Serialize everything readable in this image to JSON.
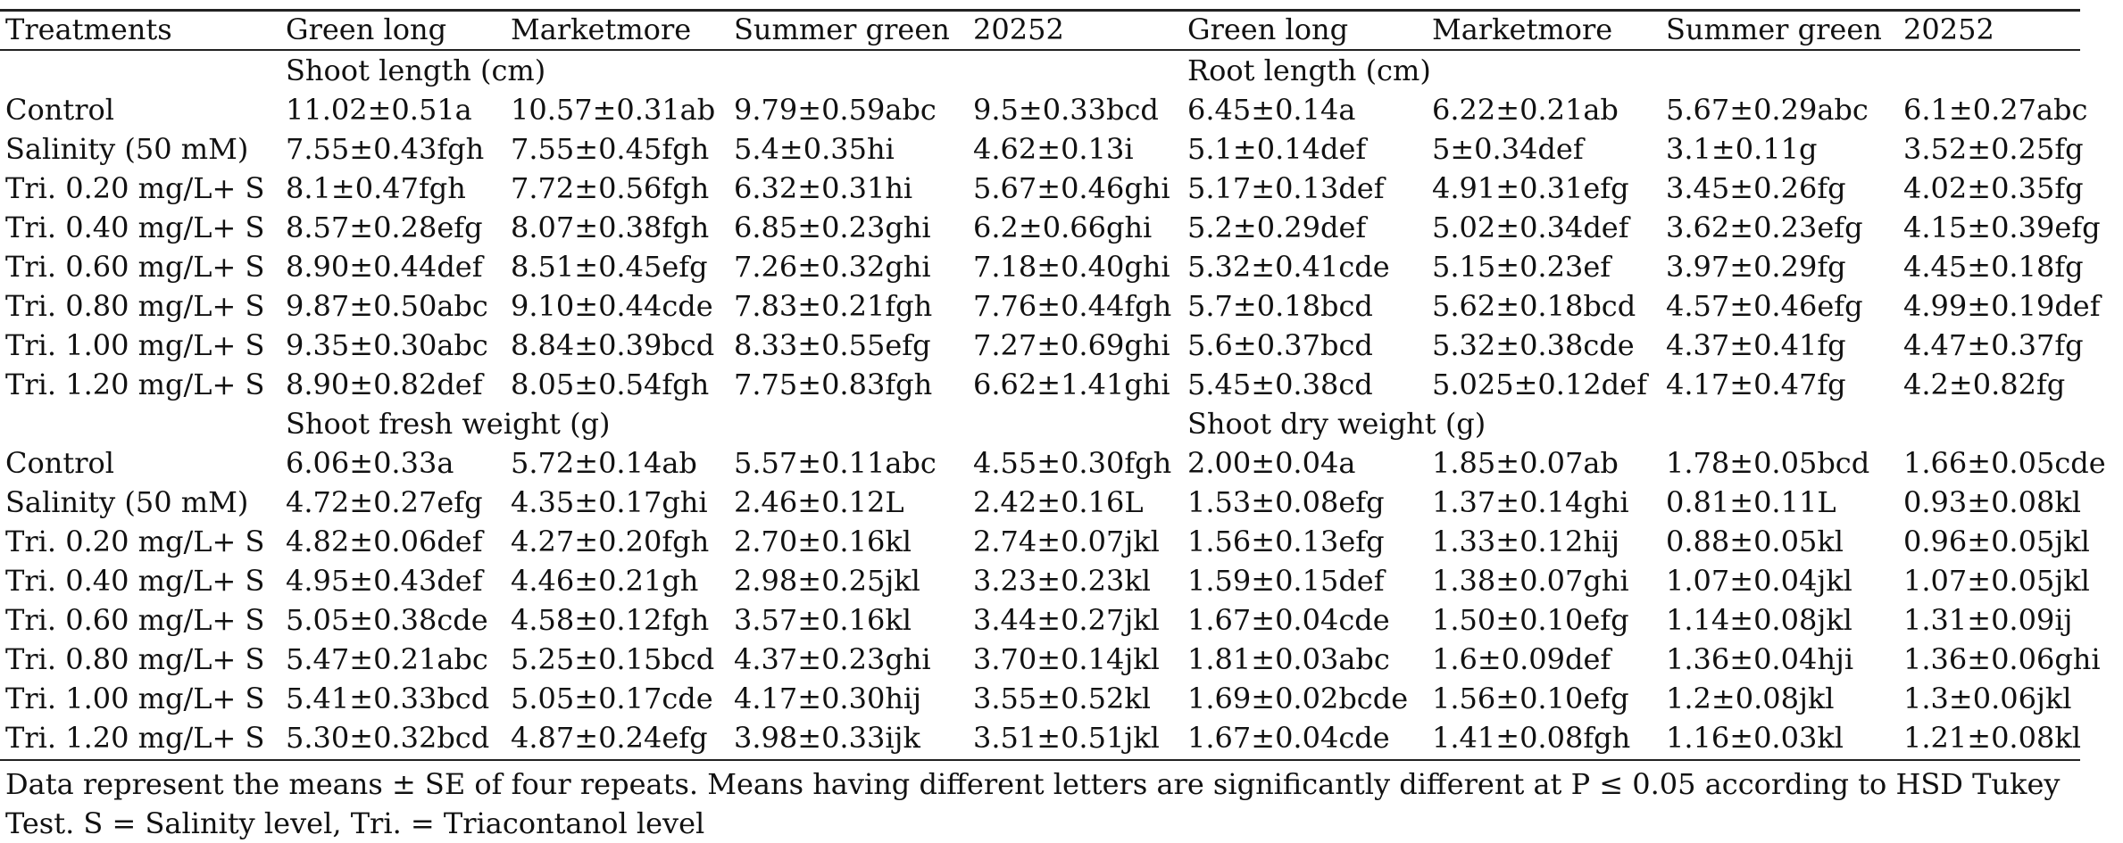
{
  "headers": [
    "Treatments",
    "Green long",
    "Marketmore",
    "Summer green",
    "20252",
    "Green long",
    "Marketmore",
    "Summer green",
    "20252"
  ],
  "sections": [
    {
      "left_title": "Shoot length (cm)",
      "right_title": "Root length (cm)",
      "rows": [
        [
          "Control",
          "11.02±0.51a",
          "10.57±0.31ab",
          "9.79±0.59abc",
          "9.5±0.33bcd",
          "6.45±0.14a",
          "6.22±0.21ab",
          "5.67±0.29abc",
          "6.1±0.27abc"
        ],
        [
          "Salinity (50 mM)",
          "7.55±0.43fgh",
          "7.55±0.45fgh",
          "5.4±0.35hi",
          "4.62±0.13i",
          "5.1±0.14def",
          "5±0.34def",
          "3.1±0.11g",
          "3.52±0.25fg"
        ],
        [
          "Tri. 0.20 mg/L+ S",
          "8.1±0.47fgh",
          "7.72±0.56fgh",
          "6.32±0.31hi",
          "5.67±0.46ghi",
          "5.17±0.13def",
          "4.91±0.31efg",
          "3.45±0.26fg",
          "4.02±0.35fg"
        ],
        [
          "Tri. 0.40 mg/L+ S",
          "8.57±0.28efg",
          "8.07±0.38fgh",
          "6.85±0.23ghi",
          "6.2±0.66ghi",
          "5.2±0.29def",
          "5.02±0.34def",
          "3.62±0.23efg",
          "4.15±0.39efg"
        ],
        [
          "Tri. 0.60 mg/L+ S",
          "8.90±0.44def",
          "8.51±0.45efg",
          "7.26±0.32ghi",
          "7.18±0.40ghi",
          "5.32±0.41cde",
          "5.15±0.23ef",
          "3.97±0.29fg",
          "4.45±0.18fg"
        ],
        [
          "Tri. 0.80 mg/L+ S",
          "9.87±0.50abc",
          "9.10±0.44cde",
          "7.83±0.21fgh",
          "7.76±0.44fgh",
          "5.7±0.18bcd",
          "5.62±0.18bcd",
          "4.57±0.46efg",
          "4.99±0.19def"
        ],
        [
          "Tri. 1.00 mg/L+ S",
          "9.35±0.30abc",
          "8.84±0.39bcd",
          "8.33±0.55efg",
          "7.27±0.69ghi",
          "5.6±0.37bcd",
          "5.32±0.38cde",
          "4.37±0.41fg",
          "4.47±0.37fg"
        ],
        [
          "Tri. 1.20 mg/L+ S",
          "8.90±0.82def",
          "8.05±0.54fgh",
          "7.75±0.83fgh",
          "6.62±1.41ghi",
          "5.45±0.38cd",
          "5.025±0.12def",
          "4.17±0.47fg",
          "4.2±0.82fg"
        ]
      ]
    },
    {
      "left_title": "Shoot fresh weight (g)",
      "right_title": "Shoot dry weight (g)",
      "rows": [
        [
          "Control",
          "6.06±0.33a",
          "5.72±0.14ab",
          "5.57±0.11abc",
          "4.55±0.30fgh",
          "2.00±0.04a",
          "1.85±0.07ab",
          "1.78±0.05bcd",
          "1.66±0.05cde"
        ],
        [
          "Salinity (50 mM)",
          "4.72±0.27efg",
          "4.35±0.17ghi",
          "2.46±0.12L",
          "2.42±0.16L",
          "1.53±0.08efg",
          "1.37±0.14ghi",
          "0.81±0.11L",
          "0.93±0.08kl"
        ],
        [
          "Tri. 0.20 mg/L+ S",
          "4.82±0.06def",
          "4.27±0.20fgh",
          "2.70±0.16kl",
          "2.74±0.07jkl",
          "1.56±0.13efg",
          "1.33±0.12hij",
          "0.88±0.05kl",
          "0.96±0.05jkl"
        ],
        [
          "Tri. 0.40 mg/L+ S",
          "4.95±0.43def",
          "4.46±0.21gh",
          "2.98±0.25jkl",
          "3.23±0.23kl",
          "1.59±0.15def",
          "1.38±0.07ghi",
          "1.07±0.04jkl",
          "1.07±0.05jkl"
        ],
        [
          "Tri. 0.60 mg/L+ S",
          "5.05±0.38cde",
          "4.58±0.12fgh",
          "3.57±0.16kl",
          "3.44±0.27jkl",
          "1.67±0.04cde",
          "1.50±0.10efg",
          "1.14±0.08jkl",
          "1.31±0.09ij"
        ],
        [
          "Tri. 0.80 mg/L+ S",
          "5.47±0.21abc",
          "5.25±0.15bcd",
          "4.37±0.23ghi",
          "3.70±0.14jkl",
          "1.81±0.03abc",
          "1.6±0.09def",
          "1.36±0.04hji",
          "1.36±0.06ghi"
        ],
        [
          "Tri. 1.00 mg/L+ S",
          "5.41±0.33bcd",
          "5.05±0.17cde",
          "4.17±0.30hij",
          "3.55±0.52kl",
          "1.69±0.02bcde",
          "1.56±0.10efg",
          "1.2±0.08jkl",
          "1.3±0.06jkl"
        ],
        [
          "Tri. 1.20 mg/L+ S",
          "5.30±0.32bcd",
          "4.87±0.24efg",
          "3.98±0.33ijk",
          "3.51±0.51jkl",
          "1.67±0.04cde",
          "1.41±0.08fgh",
          "1.16±0.03kl",
          "1.21±0.08kl"
        ]
      ]
    }
  ],
  "footnote": "Data represent the means ± SE of four repeats. Means having different letters are significantly different at P ≤ 0.05 according to HSD Tukey Test. S = Salinity level, Tri. = Triacontanol level"
}
